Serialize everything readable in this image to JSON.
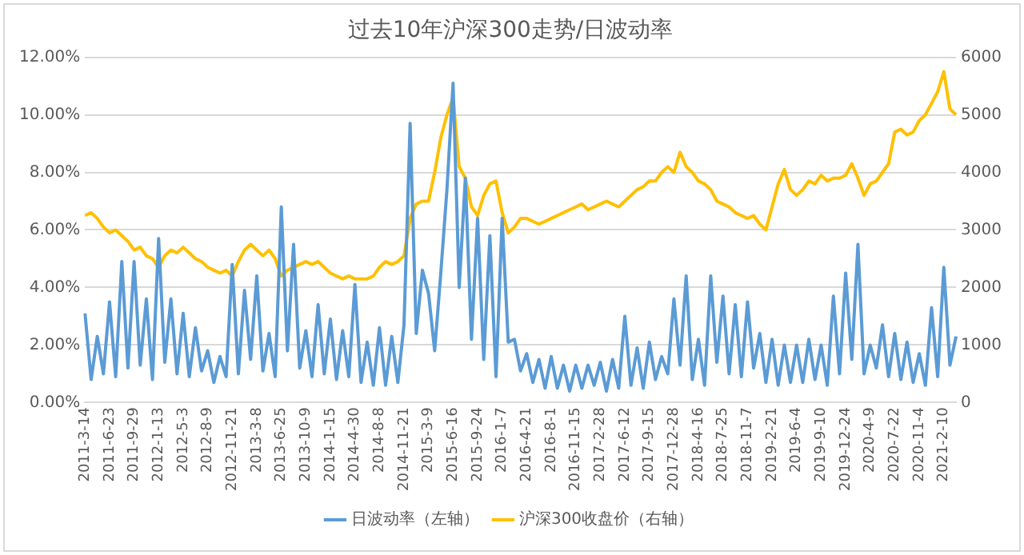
{
  "chart_data": {
    "type": "line",
    "title": "过去10年沪深300走势/日波动率",
    "categories": [
      "2011-3-14",
      null,
      null,
      null,
      "2011-6-23",
      null,
      null,
      null,
      "2011-9-29",
      null,
      null,
      null,
      "2012-1-13",
      null,
      null,
      null,
      "2012-5-3",
      null,
      null,
      null,
      "2012-8-9",
      null,
      null,
      null,
      "2012-11-21",
      null,
      null,
      null,
      "2013-3-8",
      null,
      null,
      null,
      "2013-6-25",
      null,
      null,
      null,
      "2013-10-9",
      null,
      null,
      null,
      "2014-1-15",
      null,
      null,
      null,
      "2014-4-30",
      null,
      null,
      null,
      "2014-8-8",
      null,
      null,
      null,
      "2014-11-21",
      null,
      null,
      null,
      "2015-3-9",
      null,
      null,
      null,
      "2015-6-16",
      null,
      null,
      null,
      "2015-9-24",
      null,
      null,
      null,
      "2016-1-7",
      null,
      null,
      null,
      "2016-4-21",
      null,
      null,
      null,
      "2016-8-1",
      null,
      null,
      null,
      "2016-11-15",
      null,
      null,
      null,
      "2017-2-28",
      null,
      null,
      null,
      "2017-6-12",
      null,
      null,
      null,
      "2017-9-15",
      null,
      null,
      null,
      "2017-12-28",
      null,
      null,
      null,
      "2018-4-16",
      null,
      null,
      null,
      "2018-7-25",
      null,
      null,
      null,
      "2018-11-7",
      null,
      null,
      null,
      "2019-2-21",
      null,
      null,
      null,
      "2019-6-4",
      null,
      null,
      null,
      "2019-9-10",
      null,
      null,
      null,
      "2019-12-24",
      null,
      null,
      null,
      "2020-4-9",
      null,
      null,
      null,
      "2020-7-22",
      null,
      null,
      null,
      "2020-11-4",
      null,
      null,
      null,
      "2021-2-10",
      null,
      null
    ],
    "series": [
      {
        "name": "日波动率（左轴）",
        "color": "#5b9bd5",
        "values": [
          3.1,
          0.8,
          2.3,
          1.0,
          3.5,
          0.9,
          4.9,
          1.2,
          4.9,
          1.3,
          3.6,
          0.8,
          5.7,
          1.4,
          3.6,
          1.0,
          3.1,
          0.9,
          2.6,
          1.1,
          1.8,
          0.7,
          1.6,
          0.9,
          4.8,
          1.0,
          3.9,
          1.5,
          4.4,
          1.1,
          2.4,
          0.9,
          6.8,
          1.8,
          5.5,
          1.2,
          2.5,
          0.9,
          3.4,
          1.0,
          2.9,
          0.8,
          2.5,
          0.9,
          4.1,
          0.7,
          2.1,
          0.6,
          2.6,
          0.6,
          2.3,
          0.7,
          2.7,
          9.7,
          2.4,
          4.6,
          3.8,
          1.8,
          4.5,
          7.4,
          11.1,
          4.0,
          7.8,
          2.2,
          6.4,
          1.5,
          5.8,
          0.9,
          6.4,
          2.1,
          2.2,
          1.1,
          1.7,
          0.7,
          1.5,
          0.5,
          1.6,
          0.5,
          1.3,
          0.4,
          1.3,
          0.5,
          1.3,
          0.6,
          1.4,
          0.4,
          1.5,
          0.5,
          3.0,
          0.6,
          1.9,
          0.5,
          2.1,
          0.8,
          1.6,
          1.0,
          3.6,
          1.3,
          4.4,
          0.8,
          2.2,
          0.6,
          4.4,
          1.4,
          3.7,
          1.0,
          3.4,
          0.9,
          3.5,
          1.2,
          2.4,
          0.7,
          2.2,
          0.6,
          2.0,
          0.7,
          2.0,
          0.7,
          2.2,
          0.8,
          2.0,
          0.6,
          3.7,
          1.0,
          4.5,
          1.5,
          5.5,
          1.0,
          2.0,
          1.2,
          2.7,
          0.9,
          2.4,
          0.8,
          2.1,
          0.7,
          1.7,
          0.6,
          3.3,
          0.9,
          4.7,
          1.3,
          2.3
        ]
      },
      {
        "name": "沪深300收盘价（右轴）",
        "color": "#ffc000",
        "axis": "y2",
        "values": [
          3250,
          3300,
          3200,
          3050,
          2950,
          3000,
          2900,
          2800,
          2650,
          2700,
          2550,
          2500,
          2350,
          2550,
          2650,
          2600,
          2700,
          2600,
          2500,
          2450,
          2350,
          2300,
          2250,
          2300,
          2200,
          2450,
          2650,
          2750,
          2650,
          2550,
          2650,
          2500,
          2200,
          2300,
          2350,
          2400,
          2450,
          2400,
          2450,
          2350,
          2250,
          2200,
          2150,
          2200,
          2150,
          2150,
          2150,
          2200,
          2350,
          2450,
          2400,
          2450,
          2550,
          3200,
          3450,
          3500,
          3500,
          4000,
          4600,
          5000,
          5300,
          4100,
          3900,
          3400,
          3250,
          3600,
          3800,
          3850,
          3300,
          2950,
          3050,
          3200,
          3200,
          3150,
          3100,
          3150,
          3200,
          3250,
          3300,
          3350,
          3400,
          3450,
          3350,
          3400,
          3450,
          3500,
          3450,
          3400,
          3500,
          3600,
          3700,
          3750,
          3850,
          3850,
          4000,
          4100,
          4000,
          4350,
          4100,
          4000,
          3850,
          3800,
          3700,
          3500,
          3450,
          3400,
          3300,
          3250,
          3200,
          3250,
          3100,
          3000,
          3400,
          3800,
          4050,
          3700,
          3600,
          3700,
          3850,
          3800,
          3950,
          3850,
          3900,
          3900,
          3950,
          4150,
          3900,
          3600,
          3800,
          3850,
          4000,
          4150,
          4700,
          4750,
          4650,
          4700,
          4900,
          5000,
          5200,
          5400,
          5750,
          5100,
          5000
        ]
      }
    ],
    "ylim": [
      0,
      12
    ],
    "yticks": [
      {
        "value": 0,
        "label": "0.00%"
      },
      {
        "value": 2,
        "label": "2.00%"
      },
      {
        "value": 4,
        "label": "4.00%"
      },
      {
        "value": 6,
        "label": "6.00%"
      },
      {
        "value": 8,
        "label": "8.00%"
      },
      {
        "value": 10,
        "label": "10.00%"
      },
      {
        "value": 12,
        "label": "12.00%"
      }
    ],
    "y2lim": [
      0,
      6000
    ],
    "y2ticks": [
      0,
      1000,
      2000,
      3000,
      4000,
      5000,
      6000
    ],
    "grid": "y",
    "legend": "bottom",
    "marker": "none",
    "line_style": "solid"
  }
}
